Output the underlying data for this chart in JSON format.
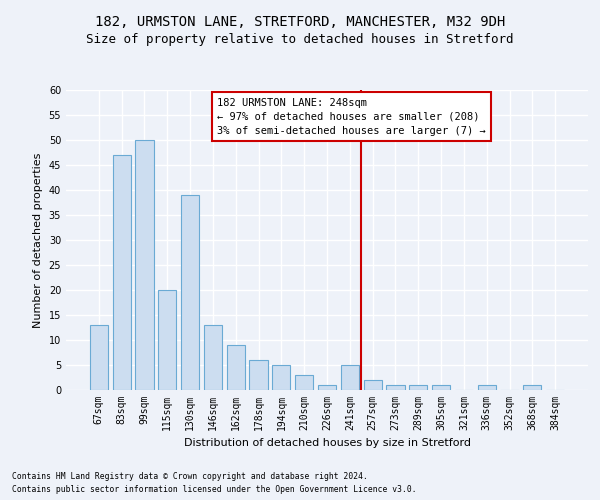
{
  "title_line1": "182, URMSTON LANE, STRETFORD, MANCHESTER, M32 9DH",
  "title_line2": "Size of property relative to detached houses in Stretford",
  "xlabel": "Distribution of detached houses by size in Stretford",
  "ylabel": "Number of detached properties",
  "categories": [
    "67sqm",
    "83sqm",
    "99sqm",
    "115sqm",
    "130sqm",
    "146sqm",
    "162sqm",
    "178sqm",
    "194sqm",
    "210sqm",
    "226sqm",
    "241sqm",
    "257sqm",
    "273sqm",
    "289sqm",
    "305sqm",
    "321sqm",
    "336sqm",
    "352sqm",
    "368sqm",
    "384sqm"
  ],
  "values": [
    13,
    47,
    50,
    20,
    39,
    13,
    9,
    6,
    5,
    3,
    1,
    5,
    2,
    1,
    1,
    1,
    0,
    1,
    0,
    1,
    0
  ],
  "bar_color": "#ccddf0",
  "bar_edge_color": "#6aaad4",
  "annotation_title": "182 URMSTON LANE: 248sqm",
  "annotation_line1": "← 97% of detached houses are smaller (208)",
  "annotation_line2": "3% of semi-detached houses are larger (7) →",
  "annotation_box_color": "#cc0000",
  "vline_x": 11.5,
  "ylim": [
    0,
    60
  ],
  "yticks": [
    0,
    5,
    10,
    15,
    20,
    25,
    30,
    35,
    40,
    45,
    50,
    55,
    60
  ],
  "footnote1": "Contains HM Land Registry data © Crown copyright and database right 2024.",
  "footnote2": "Contains public sector information licensed under the Open Government Licence v3.0.",
  "background_color": "#eef2f9",
  "grid_color": "#ffffff",
  "title_fontsize": 10,
  "subtitle_fontsize": 9,
  "axis_label_fontsize": 8,
  "tick_fontsize": 7,
  "footnote_fontsize": 5.8
}
